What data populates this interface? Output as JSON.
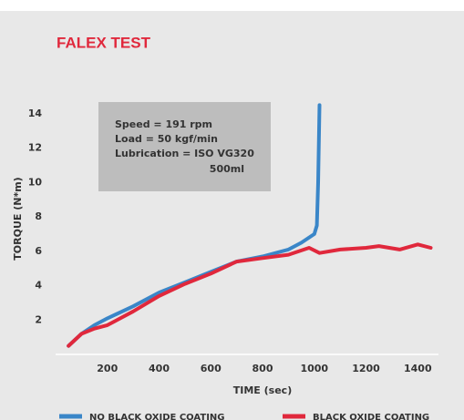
{
  "chart_data": {
    "type": "line",
    "title": "FALEX TEST",
    "xlabel": "TIME (sec)",
    "ylabel": "TORQUE (N*m)",
    "annotation": [
      "Speed = 191 rpm",
      "Load = 50 kgf/min",
      "Lubrication = ISO VG320",
      "500ml"
    ],
    "xlim": [
      0,
      1480
    ],
    "ylim": [
      0,
      15
    ],
    "xticks": [
      200,
      400,
      600,
      800,
      1000,
      1200,
      1400
    ],
    "yticks": [
      2,
      4,
      6,
      8,
      10,
      12,
      14
    ],
    "legend": "bottom",
    "series": [
      {
        "name": "NO BLACK OXIDE COATING",
        "color": "#3a86c8",
        "x": [
          50,
          100,
          150,
          200,
          300,
          400,
          500,
          600,
          700,
          800,
          900,
          950,
          1000,
          1010,
          1015,
          1020
        ],
        "values": [
          0.5,
          1.2,
          1.7,
          2.1,
          2.8,
          3.6,
          4.2,
          4.8,
          5.4,
          5.7,
          6.1,
          6.5,
          7.0,
          7.5,
          10,
          14.5
        ]
      },
      {
        "name": "BLACK OXIDE COATING",
        "color": "#e0283c",
        "x": [
          50,
          100,
          150,
          200,
          300,
          400,
          500,
          600,
          700,
          800,
          900,
          980,
          1020,
          1100,
          1200,
          1250,
          1330,
          1400,
          1450
        ],
        "values": [
          0.5,
          1.2,
          1.5,
          1.7,
          2.5,
          3.4,
          4.1,
          4.7,
          5.4,
          5.6,
          5.8,
          6.2,
          5.9,
          6.1,
          6.2,
          6.3,
          6.1,
          6.4,
          6.2
        ]
      }
    ]
  }
}
